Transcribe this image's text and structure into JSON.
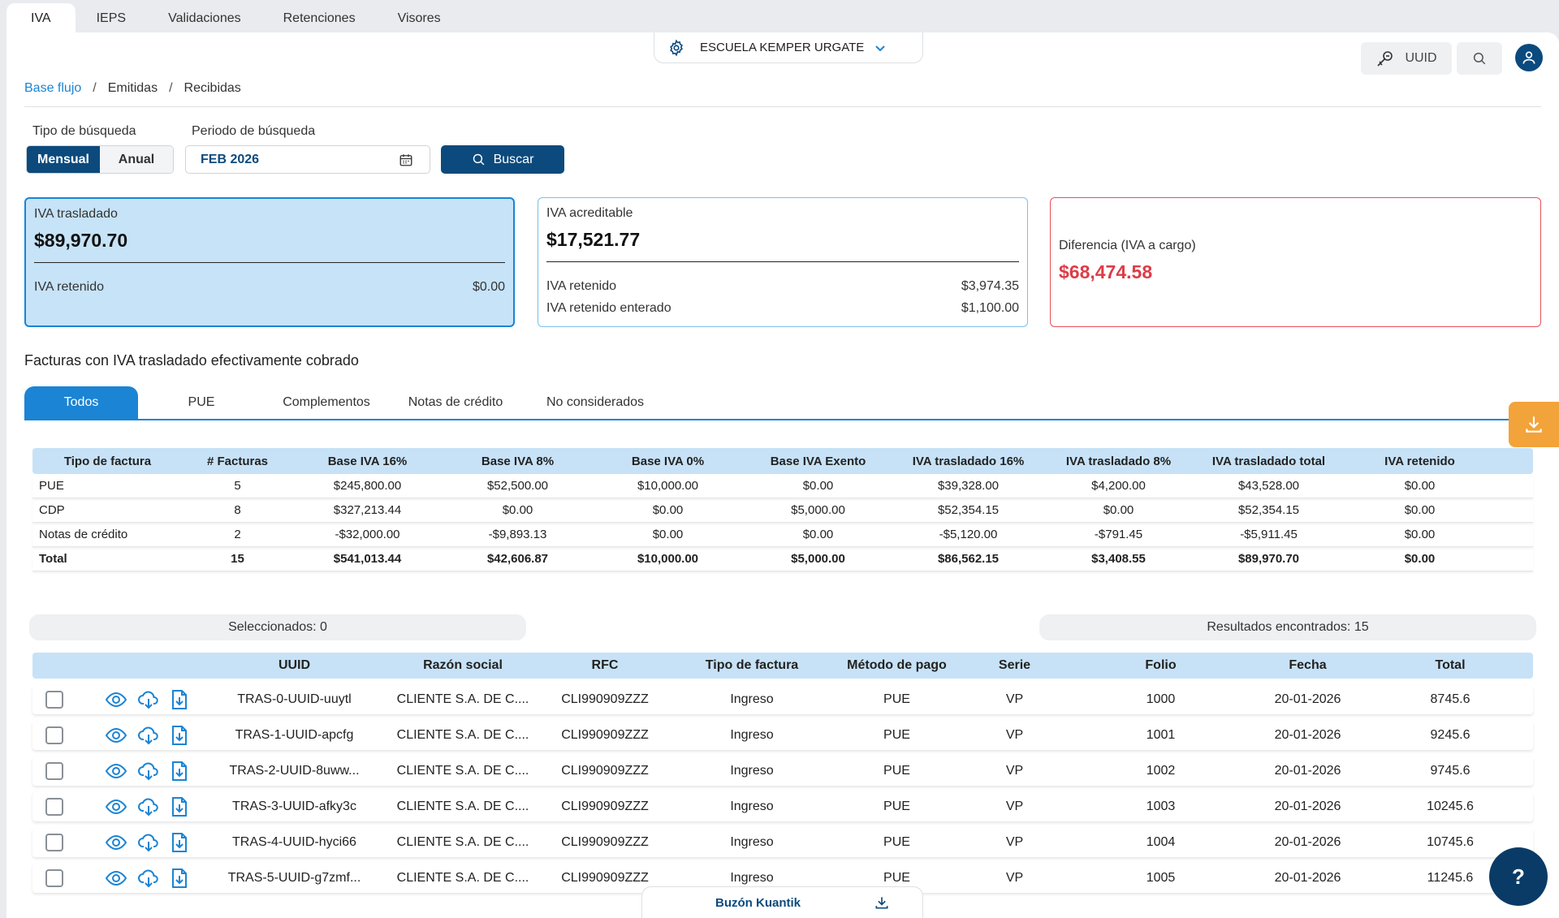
{
  "top_tabs": [
    {
      "label": "IVA",
      "active": true
    },
    {
      "label": "IEPS"
    },
    {
      "label": "Validaciones"
    },
    {
      "label": "Retenciones"
    },
    {
      "label": "Visores"
    }
  ],
  "company": {
    "name": "ESCUELA KEMPER URGATE",
    "icon": "gear-icon"
  },
  "header": {
    "uuid_label": "UUID"
  },
  "breadcrumb": [
    "Base flujo",
    "Emitidas",
    "Recibidas"
  ],
  "search": {
    "type_label": "Tipo de búsqueda",
    "period_label": "Periodo de búsqueda",
    "type_options": [
      "Mensual",
      "Anual"
    ],
    "period_value": "FEB 2026",
    "button_label": "Buscar"
  },
  "cards": {
    "trasladado": {
      "title": "IVA trasladado",
      "value": "$89,970.70",
      "rows": [
        {
          "label": "IVA retenido",
          "value": "$0.00"
        }
      ]
    },
    "acreditable": {
      "title": "IVA acreditable",
      "value": "$17,521.77",
      "rows": [
        {
          "label": "IVA retenido",
          "value": "$3,974.35"
        },
        {
          "label": "IVA retenido enterado",
          "value": "$1,100.00"
        }
      ]
    },
    "diferencia": {
      "title": "Diferencia (IVA a cargo)",
      "value": "$68,474.58"
    }
  },
  "section_title": "Facturas con IVA trasladado efectivamente cobrado",
  "inner_tabs": [
    "Todos",
    "PUE",
    "Complementos",
    "Notas de crédito",
    "No considerados"
  ],
  "summary": {
    "headers": [
      "Tipo de factura",
      "# Facturas",
      "Base IVA 16%",
      "Base IVA 8%",
      "Base IVA 0%",
      "Base IVA Exento",
      "IVA trasladado 16%",
      "IVA trasladado 8%",
      "IVA trasladado total",
      "IVA retenido"
    ],
    "rows": [
      [
        "PUE",
        "5",
        "$245,800.00",
        "$52,500.00",
        "$10,000.00",
        "$0.00",
        "$39,328.00",
        "$4,200.00",
        "$43,528.00",
        "$0.00"
      ],
      [
        "CDP",
        "8",
        "$327,213.44",
        "$0.00",
        "$0.00",
        "$5,000.00",
        "$52,354.15",
        "$0.00",
        "$52,354.15",
        "$0.00"
      ],
      [
        "Notas de crédito",
        "2",
        "-$32,000.00",
        "-$9,893.13",
        "$0.00",
        "$0.00",
        "-$5,120.00",
        "-$791.45",
        "-$5,911.45",
        "$0.00"
      ]
    ],
    "total": [
      "Total",
      "15",
      "$541,013.44",
      "$42,606.87",
      "$10,000.00",
      "$5,000.00",
      "$86,562.15",
      "$3,408.55",
      "$89,970.70",
      "$0.00"
    ]
  },
  "selection": {
    "selected_label": "Seleccionados: 0",
    "results_label": "Resultados encontrados:  15"
  },
  "detail": {
    "headers": [
      "UUID",
      "Razón social",
      "RFC",
      "Tipo de factura",
      "Método de pago",
      "Serie",
      "Folio",
      "Fecha",
      "Total"
    ],
    "rows": [
      [
        "TRAS-0-UUID-uuytl",
        "CLIENTE S.A. DE C....",
        "CLI990909ZZZ",
        "Ingreso",
        "PUE",
        "VP",
        "1000",
        "20-01-2026",
        "8745.6"
      ],
      [
        "TRAS-1-UUID-apcfg",
        "CLIENTE S.A. DE C....",
        "CLI990909ZZZ",
        "Ingreso",
        "PUE",
        "VP",
        "1001",
        "20-01-2026",
        "9245.6"
      ],
      [
        "TRAS-2-UUID-8uww...",
        "CLIENTE S.A. DE C....",
        "CLI990909ZZZ",
        "Ingreso",
        "PUE",
        "VP",
        "1002",
        "20-01-2026",
        "9745.6"
      ],
      [
        "TRAS-3-UUID-afky3c",
        "CLIENTE S.A. DE C....",
        "CLI990909ZZZ",
        "Ingreso",
        "PUE",
        "VP",
        "1003",
        "20-01-2026",
        "10245.6"
      ],
      [
        "TRAS-4-UUID-hyci66",
        "CLIENTE S.A. DE C....",
        "CLI990909ZZZ",
        "Ingreso",
        "PUE",
        "VP",
        "1004",
        "20-01-2026",
        "10745.6"
      ],
      [
        "TRAS-5-UUID-g7zmf...",
        "CLIENTE S.A. DE C....",
        "CLI990909ZZZ",
        "Ingreso",
        "PUE",
        "VP",
        "1005",
        "20-01-2026",
        "11245.6"
      ]
    ]
  },
  "footer": {
    "buzon_label": "Buzón Kuantik",
    "help_label": "?"
  },
  "colors": {
    "primary": "#0c4a7d",
    "accent": "#1b84d4",
    "light_blue": "#c7e2f7",
    "danger": "#dd3c47",
    "download": "#f2a33a"
  }
}
